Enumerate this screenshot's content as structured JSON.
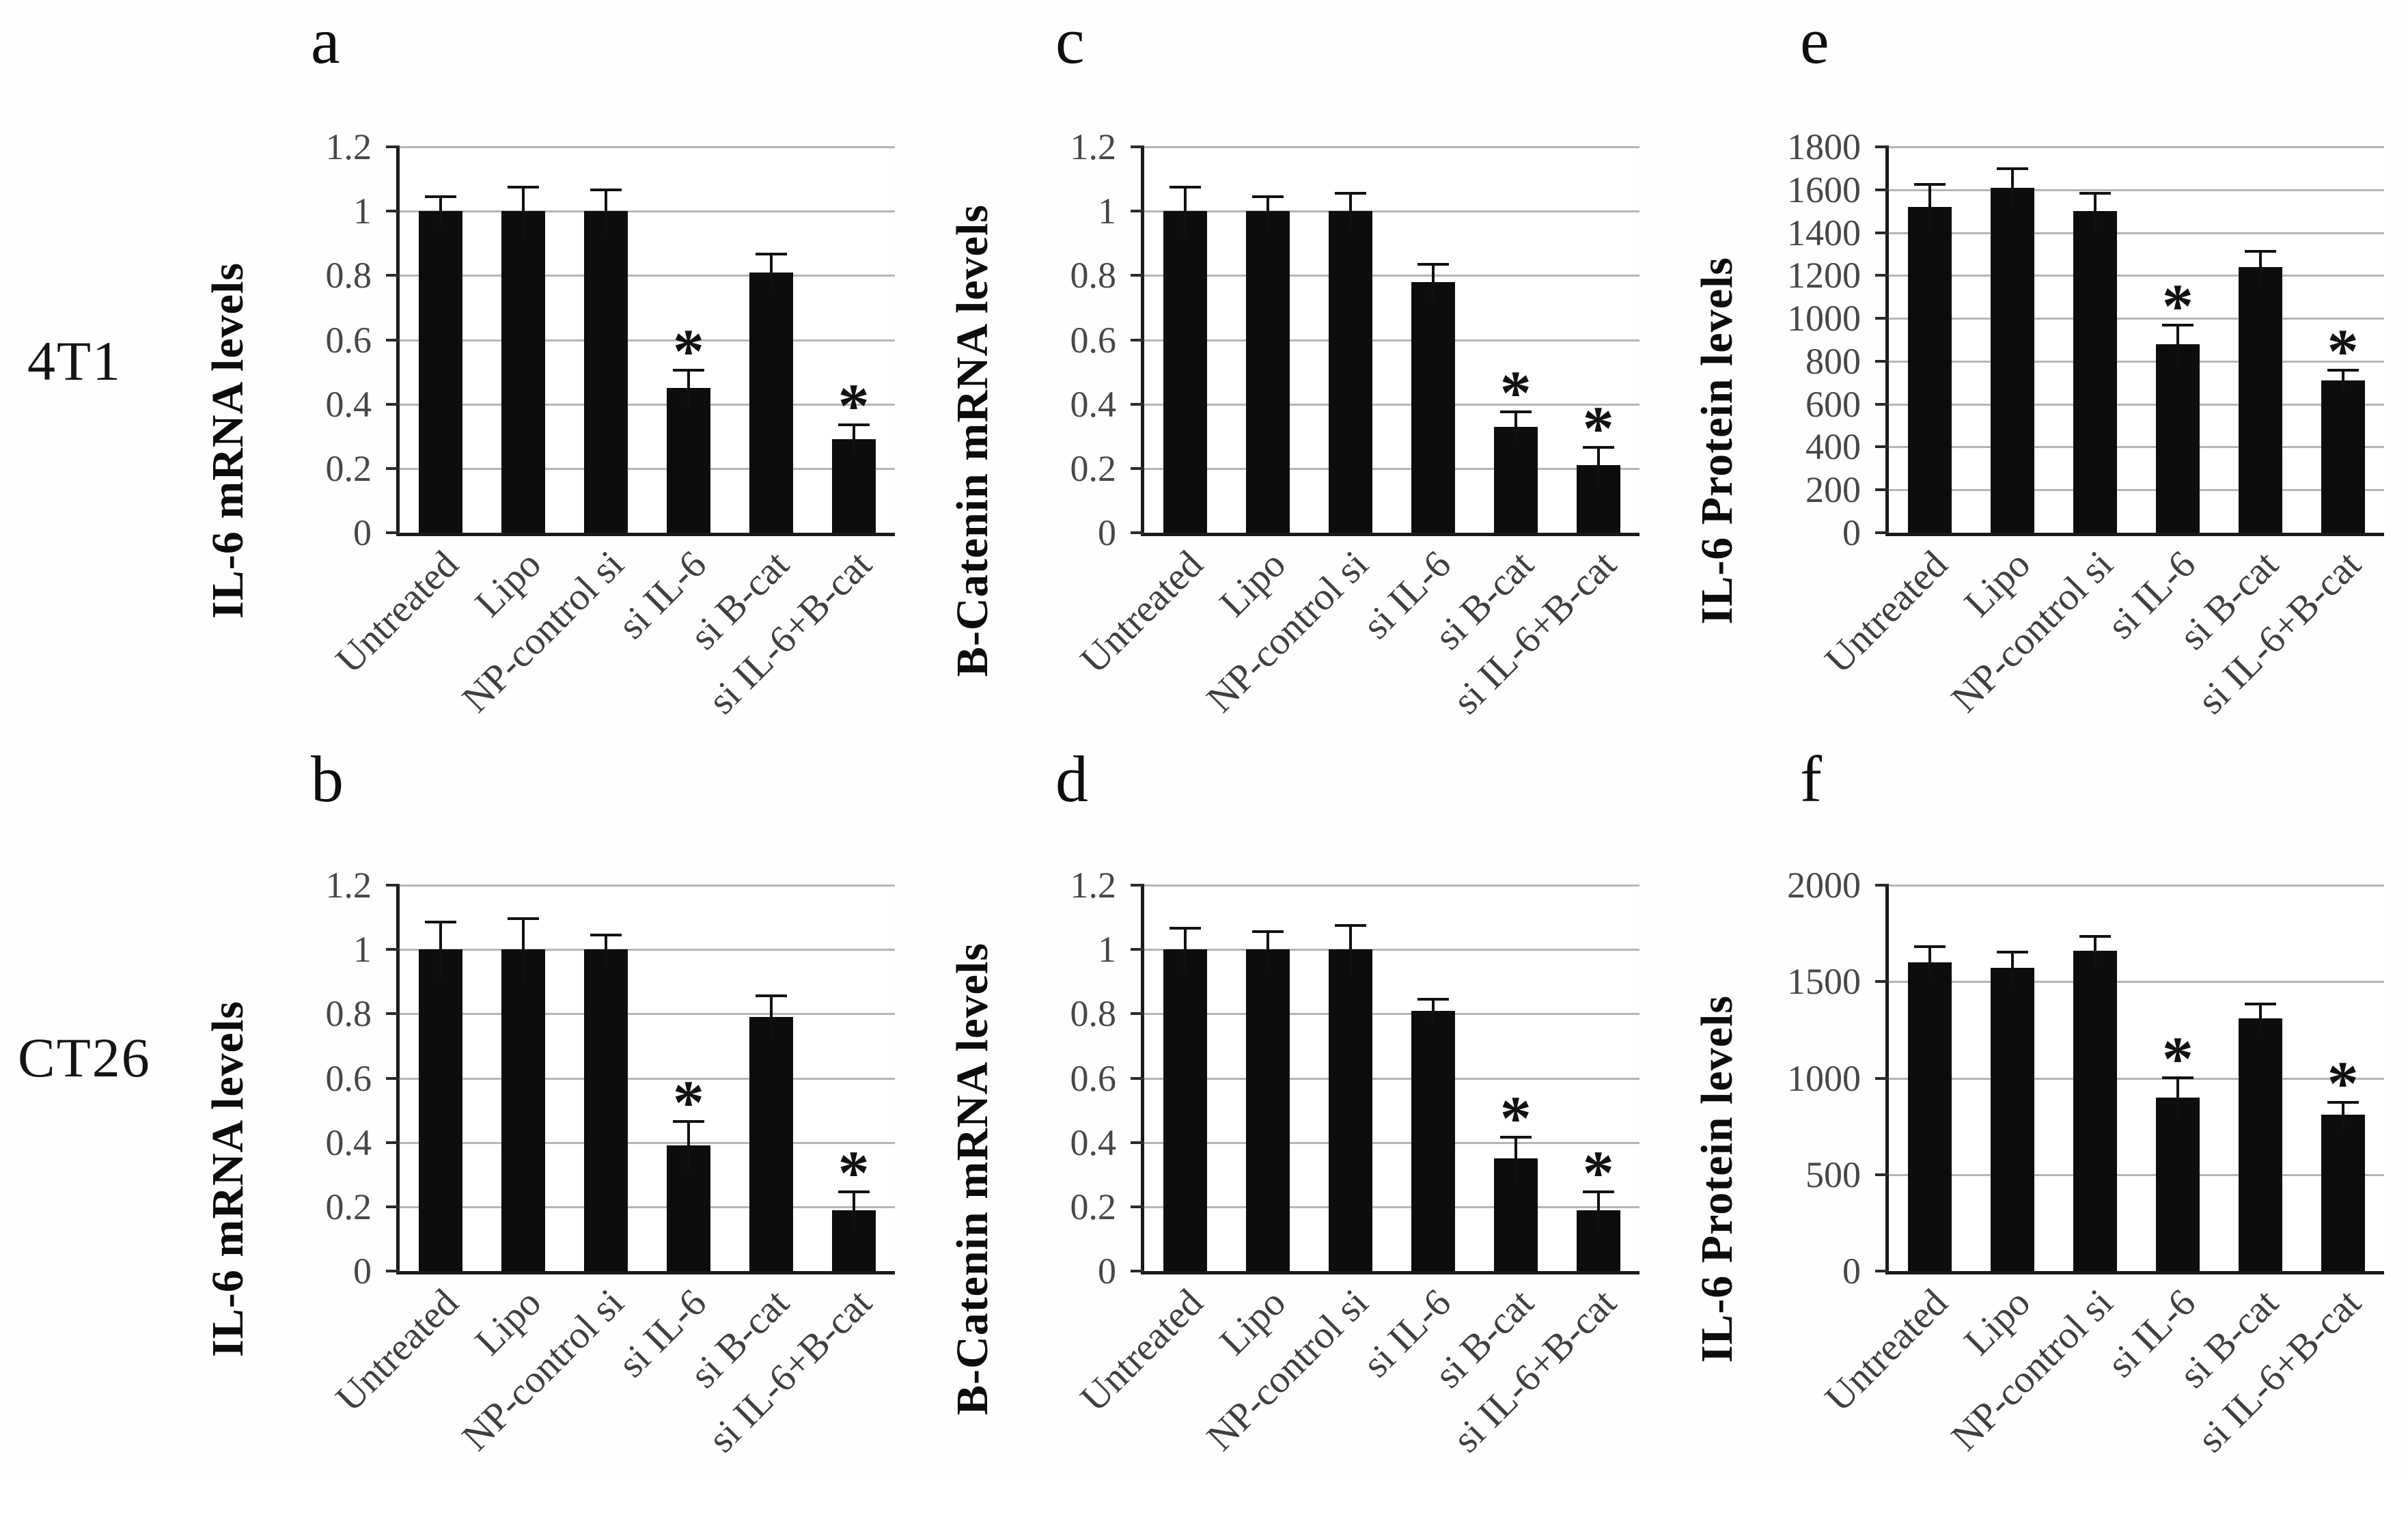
{
  "figure": {
    "row_labels": [
      "4T1",
      "CT26"
    ],
    "significance_marker": "*",
    "colors": {
      "bar": "#0d0d0d",
      "gridline": "#b5b5b5",
      "axis": "#1a1a1a",
      "tick_text": "#474747",
      "title_text": "#0c0c0c"
    }
  },
  "categories": [
    "Untreated",
    "Lipo",
    "NP-control si",
    "si IL-6",
    "si B-cat",
    "si IL-6+B-cat"
  ],
  "chart_data": [
    {
      "panel_label": "a",
      "cell_line": "4T1",
      "type": "bar",
      "ylabel": "IL-6 mRNA levels",
      "xlabel": "",
      "ylim": [
        0,
        1.2
      ],
      "grid": true,
      "legend": "none",
      "yticks": [
        {
          "value": 0,
          "label": "0"
        },
        {
          "value": 0.2,
          "label": "0.2"
        },
        {
          "value": 0.4,
          "label": "0.4"
        },
        {
          "value": 0.6,
          "label": "0.6"
        },
        {
          "value": 0.8,
          "label": "0.8"
        },
        {
          "value": 1,
          "label": "1"
        },
        {
          "value": 1.2,
          "label": "1.2"
        }
      ],
      "categories": [
        "Untreated",
        "Lipo",
        "NP-control si",
        "si IL-6",
        "si B-cat",
        "si IL-6+B-cat"
      ],
      "values": [
        1.0,
        1.0,
        1.0,
        0.45,
        0.81,
        0.29
      ],
      "errors": [
        0.05,
        0.08,
        0.07,
        0.06,
        0.06,
        0.05
      ],
      "significant": [
        false,
        false,
        false,
        true,
        false,
        true
      ]
    },
    {
      "panel_label": "b",
      "cell_line": "CT26",
      "type": "bar",
      "ylabel": "IL-6 mRNA levels",
      "xlabel": "",
      "ylim": [
        0,
        1.2
      ],
      "grid": true,
      "legend": "none",
      "yticks": [
        {
          "value": 0,
          "label": "0"
        },
        {
          "value": 0.2,
          "label": "0.2"
        },
        {
          "value": 0.4,
          "label": "0.4"
        },
        {
          "value": 0.6,
          "label": "0.6"
        },
        {
          "value": 0.8,
          "label": "0.8"
        },
        {
          "value": 1,
          "label": "1"
        },
        {
          "value": 1.2,
          "label": "1.2"
        }
      ],
      "categories": [
        "Untreated",
        "Lipo",
        "NP-control si",
        "si IL-6",
        "si B-cat",
        "si IL-6+B-cat"
      ],
      "values": [
        1.0,
        1.0,
        1.0,
        0.39,
        0.79,
        0.19
      ],
      "errors": [
        0.09,
        0.1,
        0.05,
        0.08,
        0.07,
        0.06
      ],
      "significant": [
        false,
        false,
        false,
        true,
        false,
        true
      ]
    },
    {
      "panel_label": "c",
      "cell_line": "4T1",
      "type": "bar",
      "ylabel": "B-Catenin mRNA levels",
      "xlabel": "",
      "ylim": [
        0,
        1.2
      ],
      "grid": true,
      "legend": "none",
      "yticks": [
        {
          "value": 0,
          "label": "0"
        },
        {
          "value": 0.2,
          "label": "0.2"
        },
        {
          "value": 0.4,
          "label": "0.4"
        },
        {
          "value": 0.6,
          "label": "0.6"
        },
        {
          "value": 0.8,
          "label": "0.8"
        },
        {
          "value": 1,
          "label": "1"
        },
        {
          "value": 1.2,
          "label": "1.2"
        }
      ],
      "categories": [
        "Untreated",
        "Lipo",
        "NP-control si",
        "si IL-6",
        "si B-cat",
        "si IL-6+B-cat"
      ],
      "values": [
        1.0,
        1.0,
        1.0,
        0.78,
        0.33,
        0.21
      ],
      "errors": [
        0.08,
        0.05,
        0.06,
        0.06,
        0.05,
        0.06
      ],
      "significant": [
        false,
        false,
        false,
        false,
        true,
        true
      ]
    },
    {
      "panel_label": "d",
      "cell_line": "CT26",
      "type": "bar",
      "ylabel": "B-Catenin mRNA levels",
      "xlabel": "",
      "ylim": [
        0,
        1.2
      ],
      "grid": true,
      "legend": "none",
      "yticks": [
        {
          "value": 0,
          "label": "0"
        },
        {
          "value": 0.2,
          "label": "0.2"
        },
        {
          "value": 0.4,
          "label": "0.4"
        },
        {
          "value": 0.6,
          "label": "0.6"
        },
        {
          "value": 0.8,
          "label": "0.8"
        },
        {
          "value": 1,
          "label": "1"
        },
        {
          "value": 1.2,
          "label": "1.2"
        }
      ],
      "categories": [
        "Untreated",
        "Lipo",
        "NP-control si",
        "si IL-6",
        "si B-cat",
        "si IL-6+B-cat"
      ],
      "values": [
        1.0,
        1.0,
        1.0,
        0.81,
        0.35,
        0.19
      ],
      "errors": [
        0.07,
        0.06,
        0.08,
        0.04,
        0.07,
        0.06
      ],
      "significant": [
        false,
        false,
        false,
        false,
        true,
        true
      ]
    },
    {
      "panel_label": "e",
      "cell_line": "4T1",
      "type": "bar",
      "ylabel": "IL-6 Protein levels",
      "xlabel": "",
      "ylim": [
        0,
        1800
      ],
      "grid": true,
      "legend": "none",
      "yticks": [
        {
          "value": 0,
          "label": "0"
        },
        {
          "value": 200,
          "label": "200"
        },
        {
          "value": 400,
          "label": "400"
        },
        {
          "value": 600,
          "label": "600"
        },
        {
          "value": 800,
          "label": "800"
        },
        {
          "value": 1000,
          "label": "1000"
        },
        {
          "value": 1200,
          "label": "1200"
        },
        {
          "value": 1400,
          "label": "1400"
        },
        {
          "value": 1600,
          "label": "1600"
        },
        {
          "value": 1800,
          "label": "1800"
        }
      ],
      "categories": [
        "Untreated",
        "Lipo",
        "NP-control si",
        "si IL-6",
        "si B-cat",
        "si IL-6+B-cat"
      ],
      "values": [
        1520,
        1610,
        1500,
        880,
        1240,
        710
      ],
      "errors": [
        110,
        95,
        90,
        95,
        80,
        55
      ],
      "significant": [
        false,
        false,
        false,
        true,
        false,
        true
      ]
    },
    {
      "panel_label": "f",
      "cell_line": "CT26",
      "type": "bar",
      "ylabel": "IL-6 Protein levels",
      "xlabel": "",
      "ylim": [
        0,
        2000
      ],
      "grid": true,
      "legend": "none",
      "yticks": [
        {
          "value": 0,
          "label": "0"
        },
        {
          "value": 500,
          "label": "500"
        },
        {
          "value": 1000,
          "label": "1000"
        },
        {
          "value": 1500,
          "label": "1500"
        },
        {
          "value": 2000,
          "label": "2000"
        }
      ],
      "categories": [
        "Untreated",
        "Lipo",
        "NP-control si",
        "si IL-6",
        "si B-cat",
        "si IL-6+B-cat"
      ],
      "values": [
        1600,
        1570,
        1660,
        900,
        1310,
        810
      ],
      "errors": [
        90,
        90,
        80,
        110,
        80,
        70
      ],
      "significant": [
        false,
        false,
        false,
        true,
        false,
        true
      ]
    }
  ]
}
